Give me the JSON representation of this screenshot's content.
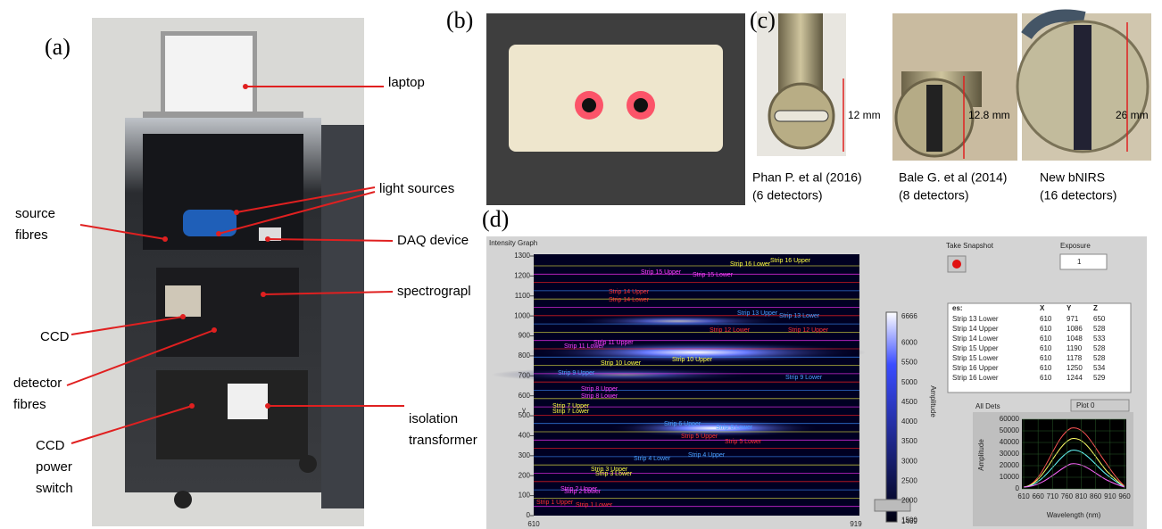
{
  "panel_labels": [
    "(a)",
    "(b)",
    "(c)",
    "(d)"
  ],
  "panel_a": {
    "annotations": [
      [
        "laptop"
      ],
      [
        "light sources"
      ],
      [
        "source",
        "fibres"
      ],
      [
        "DAQ device"
      ],
      [
        "spectrograpl"
      ],
      [
        "CCD"
      ],
      [
        "detector",
        "fibres"
      ],
      [
        "isolation",
        "transformer"
      ],
      [
        "CCD",
        "power",
        "switch"
      ]
    ]
  },
  "panel_c": {
    "dimensions": [
      "12 mm",
      "12.8 mm",
      "26 mm"
    ],
    "captions": [
      [
        "Phan P. et al (2016)",
        "(6 detectors)"
      ],
      [
        "Bale G. et al (2014)",
        "(8 detectors)"
      ],
      [
        "New bNIRS",
        "(16 detectors)"
      ]
    ]
  },
  "panel_d": {
    "graph_title": "Intensity Graph",
    "y_axis_label": "y",
    "y_ticks": [
      "0",
      "100",
      "200",
      "300",
      "400",
      "500",
      "600",
      "700",
      "800",
      "900",
      "1000",
      "1100",
      "1200",
      "1300"
    ],
    "x_ticks": [
      "610",
      "919"
    ],
    "colorbar_ticks": [
      "6666",
      "6000",
      "5500",
      "5000",
      "4500",
      "4000",
      "3500",
      "3000",
      "2500",
      "2000",
      "1500",
      "1469"
    ],
    "colorbar_label": "Amplitude",
    "strip_labels": [
      "Strip 16 Upper",
      "Strip 16 Lower",
      "Strip 15 Upper",
      "Strip 15 Lower",
      "Strip 14 Upper",
      "Strip 14 Lower",
      "Strip 13 Upper",
      "Strip 13 Lower",
      "Strip 12 Upper",
      "Strip 12 Lower",
      "Strip 11 Upper",
      "Strip 11 Lower",
      "Strip 10 Upper",
      "Strip 10 Lower",
      "Strip 9 Upper",
      "Strip 9 Lower",
      "Strip 8 Upper",
      "Strip 8 Lower",
      "Strip 7 Upper",
      "Strip 7 Lower",
      "Strip 6 Upper",
      "Strip 6 Lower",
      "Strip 5 Upper",
      "Strip 5 Lower",
      "Strip 4 Upper",
      "Strip 4 Lower",
      "Strip 3 Upper",
      "Strip 3 Lower",
      "Strip 2 Upper",
      "Strip 2 Lower",
      "Strip 1 Upper",
      "Strip 1 Lower"
    ],
    "snapshot_button": "Take Snapshot",
    "exposure_label": "Exposure",
    "exposure_value": "1",
    "table": {
      "header": [
        "es:",
        "X",
        "Y",
        "Z"
      ],
      "rows": [
        [
          "Strip 13 Lower",
          "610",
          "971",
          "650"
        ],
        [
          "Strip 14 Upper",
          "610",
          "1086",
          "528"
        ],
        [
          "Strip 14 Lower",
          "610",
          "1048",
          "533"
        ],
        [
          "Strip 15 Upper",
          "610",
          "1190",
          "528"
        ],
        [
          "Strip 15 Lower",
          "610",
          "1178",
          "528"
        ],
        [
          "Strip 16 Upper",
          "610",
          "1250",
          "534"
        ],
        [
          "Strip 16 Lower",
          "610",
          "1244",
          "529"
        ]
      ]
    },
    "plot_selector_label": "All Dets",
    "plot_legend": "Plot 0",
    "spectrum": {
      "y_ticks": [
        "0",
        "10000",
        "20000",
        "30000",
        "40000",
        "50000",
        "60000"
      ],
      "x_ticks": [
        "610",
        "660",
        "710",
        "760",
        "810",
        "860",
        "910",
        "960"
      ],
      "x_label": "Wavelength (nm)",
      "y_label": "Amplitude"
    }
  }
}
